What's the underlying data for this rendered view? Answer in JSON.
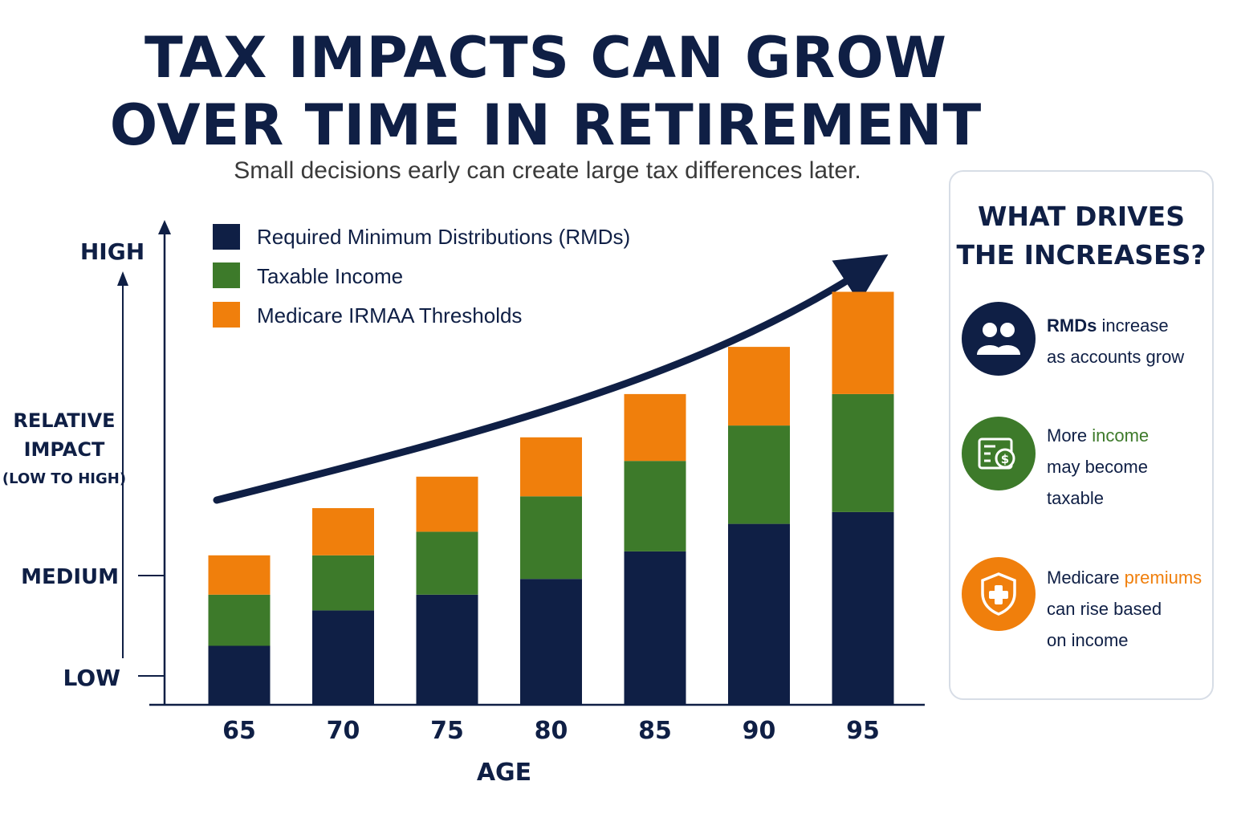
{
  "header": {
    "title_line1": "TAX IMPACTS CAN GROW",
    "title_line2": "OVER TIME IN RETIREMENT",
    "subtitle": "Small decisions early can create large tax differences later."
  },
  "colors": {
    "navy": "#0f1f45",
    "green": "#3d7a2a",
    "orange": "#f07f0c"
  },
  "chart_data": {
    "type": "bar",
    "stacked": true,
    "categories": [
      "65",
      "70",
      "75",
      "80",
      "85",
      "90",
      "95"
    ],
    "series": [
      {
        "name": "Required Minimum Distributions (RMDs)",
        "color": "#0f1f45",
        "values": [
          1.5,
          2.4,
          2.8,
          3.2,
          3.9,
          4.6,
          4.9
        ]
      },
      {
        "name": "Taxable Income",
        "color": "#3d7a2a",
        "values": [
          1.3,
          1.4,
          1.6,
          2.1,
          2.3,
          2.5,
          3.0
        ]
      },
      {
        "name": "Medicare IRMAA Thresholds",
        "color": "#f07f0c",
        "values": [
          1.0,
          1.2,
          1.4,
          1.5,
          1.7,
          2.0,
          2.6
        ]
      }
    ],
    "xlabel": "AGE",
    "ylabel": "RELATIVE IMPACT (LOW TO HIGH)",
    "ylabel_line1": "RELATIVE",
    "ylabel_line2": "IMPACT",
    "ylabel_line3": "(LOW TO HIGH)",
    "y_tick_labels": {
      "low": "LOW",
      "medium": "MEDIUM",
      "high": "HIGH"
    },
    "ylim": [
      0,
      12
    ],
    "legend_placement": "top-left",
    "grid": false,
    "trend_arrow": true
  },
  "drivers_panel": {
    "title_line1": "WHAT DRIVES",
    "title_line2": "THE INCREASES?",
    "items": [
      {
        "icon": "people-icon",
        "color": "#0f1f45",
        "bold": "RMDs",
        "pre": "",
        "post": " increase",
        "line2": "as accounts grow",
        "line3": ""
      },
      {
        "icon": "money-document-icon",
        "color": "#3d7a2a",
        "pre": "More ",
        "highlight": "income",
        "post": "",
        "line2": "may become",
        "line3": "taxable"
      },
      {
        "icon": "health-shield-icon",
        "color": "#f07f0c",
        "pre": "Medicare ",
        "highlight": "premiums",
        "post": "",
        "line2": "can rise based",
        "line3": "on income"
      }
    ]
  }
}
